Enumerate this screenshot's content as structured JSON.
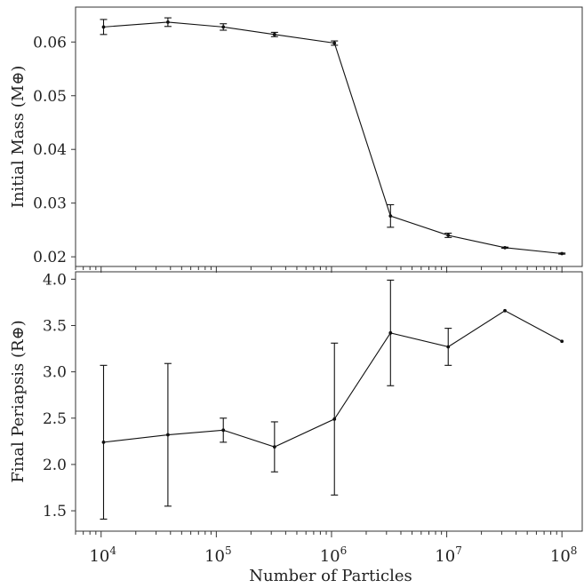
{
  "chart_data": [
    {
      "type": "line",
      "panel": "top",
      "xlabel": "",
      "ylabel": "Initial Mass (M⊕)",
      "xscale": "log",
      "xlim": [
        6000,
        150000000
      ],
      "ylim": [
        0.0182,
        0.0665
      ],
      "yticks": [
        0.02,
        0.03,
        0.04,
        0.05,
        0.06
      ],
      "ytick_labels": [
        "0.02",
        "0.03",
        "0.04",
        "0.05",
        "0.06"
      ],
      "x": [
        10500,
        38000,
        115000,
        320000,
        1060000,
        3250000,
        10300000,
        32000000,
        100000000
      ],
      "y": [
        0.0628,
        0.0637,
        0.0628,
        0.0614,
        0.0598,
        0.0276,
        0.024,
        0.0217,
        0.0206
      ],
      "yerr": [
        0.0014,
        0.0008,
        0.0006,
        0.0004,
        0.0004,
        0.0021,
        0.0004,
        0.0001,
        0.0001
      ]
    },
    {
      "type": "line",
      "panel": "bottom",
      "xlabel": "Number of Particles",
      "ylabel": "Final Periapsis (R⊕)",
      "xscale": "log",
      "xlim": [
        6000,
        150000000
      ],
      "ylim": [
        1.28,
        4.08
      ],
      "yticks": [
        1.5,
        2.0,
        2.5,
        3.0,
        3.5,
        4.0
      ],
      "ytick_labels": [
        "1.5",
        "2.0",
        "2.5",
        "3.0",
        "3.5",
        "4.0"
      ],
      "xticks": [
        10000,
        100000,
        1000000,
        10000000,
        100000000
      ],
      "xtick_labels": [
        {
          "base": "10",
          "exp": "4"
        },
        {
          "base": "10",
          "exp": "5"
        },
        {
          "base": "10",
          "exp": "6"
        },
        {
          "base": "10",
          "exp": "7"
        },
        {
          "base": "10",
          "exp": "8"
        }
      ],
      "x": [
        10500,
        38000,
        115000,
        320000,
        1060000,
        3250000,
        10300000,
        32000000,
        100000000
      ],
      "y": [
        2.24,
        2.32,
        2.37,
        2.19,
        2.49,
        3.42,
        3.27,
        3.66,
        3.33
      ],
      "yerr": [
        0.83,
        0.77,
        0.13,
        0.27,
        0.82,
        0.57,
        0.2,
        0.0,
        0.0
      ]
    }
  ]
}
